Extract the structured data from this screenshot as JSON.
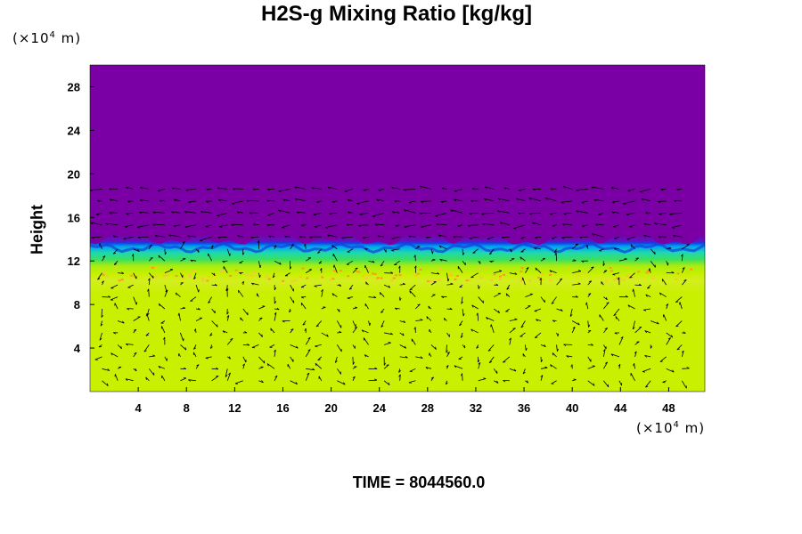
{
  "chart_data": {
    "type": "heatmap",
    "title": "H2S-g Mixing Ratio [kg/kg]",
    "ylabel": "Height",
    "x_unit": "(×10",
    "x_unit_exp": "4",
    "x_unit_tail": " m)",
    "y_unit": "(×10",
    "y_unit_exp": "4",
    "y_unit_tail": " m)",
    "xlim": [
      0,
      51
    ],
    "ylim": [
      0,
      30
    ],
    "x_ticks": [
      4,
      8,
      12,
      16,
      20,
      24,
      28,
      32,
      36,
      40,
      44,
      48
    ],
    "y_ticks": [
      4,
      8,
      12,
      16,
      20,
      24,
      28
    ],
    "field_layers": [
      {
        "name": "upper",
        "y_range": [
          14,
          30
        ],
        "color": "#7a00a6"
      },
      {
        "name": "transition",
        "y_range": [
          11.5,
          14
        ],
        "color": "#1fd8b0"
      },
      {
        "name": "lower",
        "y_range": [
          0,
          11.5
        ],
        "color": "#c8f000"
      }
    ],
    "vector_field": true
  },
  "footer": {
    "time_label": "TIME = 8044560.0"
  }
}
